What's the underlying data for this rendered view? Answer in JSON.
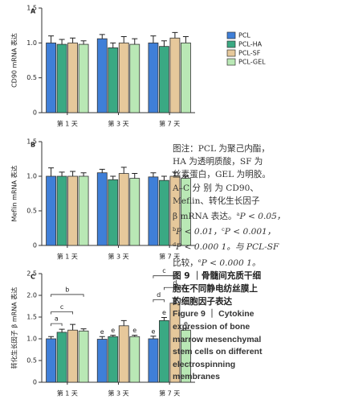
{
  "chart_data": [
    {
      "type": "bar",
      "panel": "A",
      "ylabel": "CD90 mRNA 表达",
      "categories": [
        "第 1 天",
        "第 3 天",
        "第 7 天"
      ],
      "ylim": [
        0,
        1.5
      ],
      "yticks": [
        0,
        0.5,
        {
          "value": 1,
          "label": "1.0"
        },
        1.5
      ],
      "series": [
        {
          "name": "PCL",
          "color": "#3f7fd8",
          "values": [
            1.0,
            1.06,
            1.0
          ],
          "errors": [
            0.1,
            0.06,
            0.1
          ]
        },
        {
          "name": "PCL-HA",
          "color": "#3aa983",
          "values": [
            0.98,
            0.93,
            0.95
          ],
          "errors": [
            0.07,
            0.07,
            0.08
          ]
        },
        {
          "name": "PCL-SF",
          "color": "#e6c89b",
          "values": [
            1.0,
            1.0,
            1.07
          ],
          "errors": [
            0.07,
            0.09,
            0.08
          ]
        },
        {
          "name": "PCL-GEL",
          "color": "#b9e8b5",
          "values": [
            0.98,
            0.98,
            1.0
          ],
          "errors": [
            0.05,
            0.08,
            0.09
          ]
        }
      ]
    },
    {
      "type": "bar",
      "panel": "B",
      "ylabel": "Meflin mRNA 表达",
      "categories": [
        "第 1 天",
        "第 3 天",
        "第 7 天"
      ],
      "ylim": [
        0,
        1.5
      ],
      "yticks": [
        0,
        0.5,
        {
          "value": 1,
          "label": "1.0"
        },
        1.5
      ],
      "series": [
        {
          "name": "PCL",
          "color": "#3f7fd8",
          "values": [
            1.0,
            1.05,
            0.99
          ],
          "errors": [
            0.12,
            0.05,
            0.06
          ]
        },
        {
          "name": "PCL-HA",
          "color": "#3aa983",
          "values": [
            1.0,
            0.95,
            0.94
          ],
          "errors": [
            0.06,
            0.05,
            0.06
          ]
        },
        {
          "name": "PCL-SF",
          "color": "#e6c89b",
          "values": [
            1.0,
            1.04,
            1.0
          ],
          "errors": [
            0.07,
            0.09,
            0.06
          ]
        },
        {
          "name": "PCL-GEL",
          "color": "#b9e8b5",
          "values": [
            1.0,
            0.97,
            0.97
          ],
          "errors": [
            0.05,
            0.07,
            0.03
          ]
        }
      ]
    },
    {
      "type": "bar",
      "panel": "C",
      "ylabel": "转化生长因子 β mRNA 表达",
      "categories": [
        "第 1 天",
        "第 3 天",
        "第 7 天"
      ],
      "ylim": [
        0,
        2.5
      ],
      "yticks": [
        0,
        0.5,
        {
          "value": 1,
          "label": "1.0"
        },
        1.5,
        {
          "value": 2,
          "label": "2.0"
        },
        2.5
      ],
      "annotations": [
        "a",
        "c",
        "b",
        "d",
        "d",
        "c",
        "e",
        "e",
        "e",
        "e",
        "e",
        "e"
      ],
      "series": [
        {
          "name": "PCL",
          "color": "#3f7fd8",
          "values": [
            1.0,
            0.99,
            1.0
          ],
          "errors": [
            0.05,
            0.06,
            0.06
          ]
        },
        {
          "name": "PCL-HA",
          "color": "#3aa983",
          "values": [
            1.15,
            1.05,
            1.42
          ],
          "errors": [
            0.07,
            0.03,
            0.07
          ]
        },
        {
          "name": "PCL-SF",
          "color": "#e6c89b",
          "values": [
            1.2,
            1.3,
            1.82
          ],
          "errors": [
            0.13,
            0.12,
            0.12
          ]
        },
        {
          "name": "PCL-GEL",
          "color": "#b9e8b5",
          "values": [
            1.18,
            1.05,
            1.2
          ],
          "errors": [
            0.05,
            0.03,
            0.04
          ]
        }
      ]
    }
  ],
  "caption": {
    "lines": [
      [
        "图注：PCL 为聚己内酯，"
      ],
      [
        "HA 为透明质酸，SF 为"
      ],
      [
        "丝素蛋白，GEL 为明胶。"
      ],
      [
        "A–C 分 别 为 CD90、"
      ],
      [
        "Meflin、转化生长因子"
      ],
      [
        "β mRNA 表达。",
        "a",
        "P < 0.05，"
      ],
      [
        "b",
        "P < 0.01，",
        "c",
        "P < 0.001，"
      ],
      [
        "d",
        "P < 0.000 1。与 PCL-SF"
      ],
      [
        "比较，",
        "e",
        "P < 0.000 1。"
      ]
    ],
    "title_zh": [
      "图 9 ｜骨髓间充质干细",
      "胞在不同静电纺丝膜上",
      "的细胞因子表达"
    ],
    "title_en": [
      "Figure 9 ｜ Cytokine",
      "expression of bone",
      "marrow mesenchymal",
      "stem cells on different",
      "electrospinning",
      "membranes"
    ]
  }
}
